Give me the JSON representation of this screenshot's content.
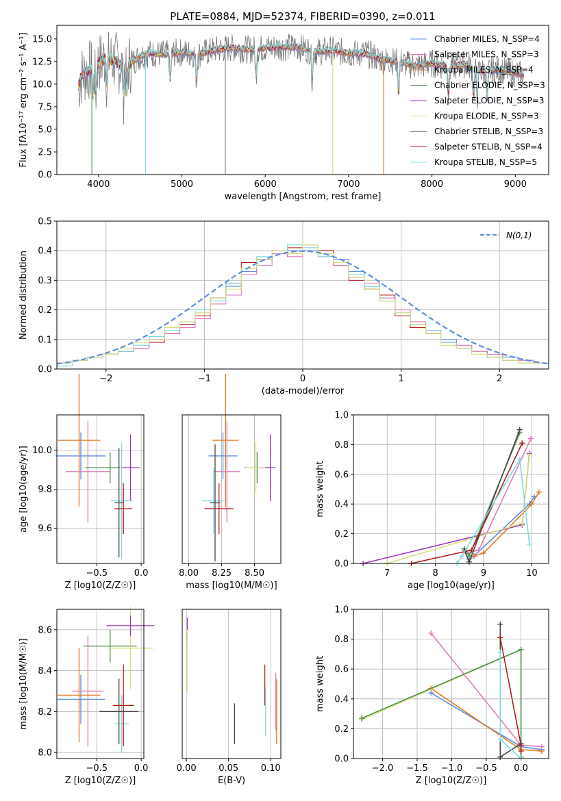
{
  "chart_data": [
    {
      "type": "line",
      "title": "PLATE=0884, MJD=52374, FIBERID=0390, z=0.011",
      "xlabel": "wavelength [Angstrom, rest frame]",
      "ylabel": "Flux [fλ10⁻¹⁷ erg cm⁻² s⁻¹ A⁻¹]",
      "xlim": [
        3500,
        9400
      ],
      "ylim": [
        0,
        16.5
      ],
      "xticks": [
        4000,
        5000,
        6000,
        7000,
        8000,
        9000
      ],
      "yticks": [
        0.0,
        2.5,
        5.0,
        7.5,
        10.0,
        12.5,
        15.0
      ],
      "grid": false,
      "legend_position": "top-right",
      "legend": [
        {
          "label": "Chabrier MILES, N_SSP=4",
          "color": "#5b8ee0"
        },
        {
          "label": "Salpeter MILES, N_SSP=3",
          "color": "#e07ab9"
        },
        {
          "label": "Kroupa MILES, N_SSP=4",
          "color": "#e07a1f"
        },
        {
          "label": "Chabrier ELODIE, N_SSP=3",
          "color": "#4f8f4f"
        },
        {
          "label": "Salpeter ELODIE, N_SSP=3",
          "color": "#9b35b8"
        },
        {
          "label": "Kroupa ELODIE, N_SSP=3",
          "color": "#d7e07a"
        },
        {
          "label": "Chabrier STELIB, N_SSP=3",
          "color": "#444444"
        },
        {
          "label": "Salpeter STELIB, N_SSP=4",
          "color": "#b01c1c"
        },
        {
          "label": "Kroupa STELIB, N_SSP=5",
          "color": "#7fd9e0"
        }
      ],
      "spectrum_envelope": {
        "x": [
          3750,
          3800,
          3900,
          4000,
          4100,
          4200,
          4300,
          4400,
          4500,
          4600,
          4800,
          5000,
          5200,
          5400,
          5600,
          5800,
          6000,
          6200,
          6400,
          6600,
          6800,
          7000,
          7200,
          7400,
          7600,
          7800,
          8000,
          8200,
          8400,
          8600,
          8800,
          9000,
          9100
        ],
        "y": [
          9.5,
          11.0,
          11.6,
          12.3,
          13.0,
          12.5,
          12.0,
          12.4,
          13.1,
          13.4,
          13.3,
          13.5,
          13.3,
          13.8,
          14.0,
          13.8,
          14.0,
          14.1,
          14.1,
          13.6,
          13.7,
          13.4,
          13.4,
          12.7,
          12.5,
          12.0,
          12.3,
          11.9,
          12.2,
          11.4,
          11.6,
          11.2,
          11.0
        ]
      }
    },
    {
      "type": "line",
      "xlabel": "(data-model)/error",
      "ylabel": "Normed distribution",
      "xlim": [
        -2.5,
        2.5
      ],
      "ylim": [
        0,
        0.5
      ],
      "xticks": [
        -2,
        -1,
        0,
        1,
        2
      ],
      "yticks": [
        0.0,
        0.1,
        0.2,
        0.3,
        0.4,
        0.5
      ],
      "grid": true,
      "legend_position": "top-right",
      "legend": [
        {
          "label": "N(0,1)",
          "color": "#5b8ee0"
        }
      ],
      "series": [
        {
          "color": "#5b8ee0",
          "step_values": [
            0.02,
            0.03,
            0.04,
            0.05,
            0.06,
            0.08,
            0.1,
            0.12,
            0.15,
            0.19,
            0.24,
            0.28,
            0.33,
            0.37,
            0.39,
            0.4,
            0.4,
            0.39,
            0.37,
            0.33,
            0.28,
            0.24,
            0.19,
            0.15,
            0.12,
            0.1,
            0.08,
            0.06,
            0.05,
            0.04,
            0.03,
            0.02
          ]
        },
        {
          "color": "#b01c1c",
          "step_values": [
            0.02,
            0.03,
            0.04,
            0.05,
            0.06,
            0.07,
            0.09,
            0.12,
            0.15,
            0.18,
            0.24,
            0.29,
            0.36,
            0.37,
            0.4,
            0.41,
            0.42,
            0.4,
            0.35,
            0.3,
            0.27,
            0.25,
            0.18,
            0.14,
            0.12,
            0.09,
            0.07,
            0.06,
            0.04,
            0.03,
            0.03,
            0.02
          ]
        },
        {
          "color": "#e07ab9",
          "step_values": [
            0.02,
            0.03,
            0.04,
            0.05,
            0.06,
            0.07,
            0.1,
            0.12,
            0.14,
            0.17,
            0.22,
            0.25,
            0.32,
            0.35,
            0.39,
            0.38,
            0.41,
            0.38,
            0.35,
            0.31,
            0.29,
            0.24,
            0.2,
            0.16,
            0.13,
            0.09,
            0.08,
            0.06,
            0.05,
            0.03,
            0.03,
            0.02
          ]
        },
        {
          "color": "#7fd9e0",
          "step_values": [
            0.01,
            0.03,
            0.04,
            0.05,
            0.06,
            0.08,
            0.11,
            0.13,
            0.16,
            0.2,
            0.23,
            0.29,
            0.34,
            0.38,
            0.4,
            0.42,
            0.41,
            0.38,
            0.36,
            0.32,
            0.28,
            0.23,
            0.19,
            0.15,
            0.13,
            0.09,
            0.07,
            0.05,
            0.04,
            0.03,
            0.02,
            0.02
          ]
        },
        {
          "color": "#d7e07a",
          "step_values": [
            0.02,
            0.03,
            0.04,
            0.05,
            0.07,
            0.09,
            0.1,
            0.14,
            0.16,
            0.19,
            0.24,
            0.27,
            0.34,
            0.37,
            0.4,
            0.39,
            0.42,
            0.39,
            0.36,
            0.31,
            0.27,
            0.23,
            0.19,
            0.15,
            0.12,
            0.08,
            0.07,
            0.05,
            0.04,
            0.03,
            0.02,
            0.02
          ]
        }
      ],
      "normal_curve": {
        "mean": 0,
        "sigma": 1
      }
    },
    {
      "type": "scatter",
      "xlabel": "Z [log10(Z/Z☉)]",
      "ylabel": "age  [log10(age/yr)]",
      "xlim": [
        -0.95,
        0.03
      ],
      "ylim": [
        9.42,
        10.18
      ],
      "xticks": [
        -0.5,
        0.0
      ],
      "yticks": [
        9.6,
        9.8,
        10.0
      ],
      "grid": true,
      "points": [
        {
          "color": "#5b8ee0",
          "x": -0.68,
          "y": 9.97,
          "xerr": 0.28,
          "yerr": 0.12
        },
        {
          "color": "#e07a1f",
          "x": -0.7,
          "y": 10.05,
          "xerr": 0.24,
          "yerr": 0.34
        },
        {
          "color": "#e07ab9",
          "x": -0.6,
          "y": 9.89,
          "xerr": 0.25,
          "yerr": 0.26
        },
        {
          "color": "#4f8f4f",
          "x": -0.35,
          "y": 9.91,
          "xerr": 0.28,
          "yerr": 0.08
        },
        {
          "color": "#d7e07a",
          "x": -0.12,
          "y": 9.91,
          "xerr": 0.12,
          "yerr": 0.13
        },
        {
          "color": "#9b35b8",
          "x": -0.12,
          "y": 9.91,
          "xerr": 0.1,
          "yerr": 0.17
        },
        {
          "color": "#7fd9e0",
          "x": -0.22,
          "y": 9.74,
          "xerr": 0.12,
          "yerr": 0.3
        },
        {
          "color": "#444444",
          "x": -0.25,
          "y": 9.73,
          "xerr": 0.05,
          "yerr": 0.28
        },
        {
          "color": "#b01c1c",
          "x": -0.2,
          "y": 9.7,
          "xerr": 0.1,
          "yerr": 0.13
        }
      ]
    },
    {
      "type": "scatter",
      "xlabel": "mass [log10(M/M☉)]",
      "xlim": [
        7.95,
        8.7
      ],
      "ylim": [
        9.42,
        10.18
      ],
      "xticks": [
        8.0,
        8.25,
        8.5
      ],
      "grid": true,
      "points": [
        {
          "color": "#5b8ee0",
          "x": 8.26,
          "y": 9.97,
          "xerr": 0.11,
          "yerr": 0.12
        },
        {
          "color": "#e07a1f",
          "x": 8.28,
          "y": 10.05,
          "xerr": 0.1,
          "yerr": 0.34
        },
        {
          "color": "#e07ab9",
          "x": 8.29,
          "y": 9.89,
          "xerr": 0.1,
          "yerr": 0.26
        },
        {
          "color": "#4f8f4f",
          "x": 8.52,
          "y": 9.91,
          "xerr": 0.1,
          "yerr": 0.08
        },
        {
          "color": "#d7e07a",
          "x": 8.51,
          "y": 9.91,
          "xerr": 0.08,
          "yerr": 0.13
        },
        {
          "color": "#9b35b8",
          "x": 8.62,
          "y": 9.91,
          "xerr": 0.04,
          "yerr": 0.17
        },
        {
          "color": "#7fd9e0",
          "x": 8.19,
          "y": 9.74,
          "xerr": 0.09,
          "yerr": 0.17
        },
        {
          "color": "#444444",
          "x": 8.2,
          "y": 9.73,
          "xerr": 0.04,
          "yerr": 0.3
        },
        {
          "color": "#b01c1c",
          "x": 8.23,
          "y": 9.7,
          "xerr": 0.11,
          "yerr": 0.13
        }
      ]
    },
    {
      "type": "line",
      "xlabel": "age  [log10(age/yr)]",
      "ylabel": "mass weight",
      "xlim": [
        6.3,
        10.35
      ],
      "ylim": [
        0,
        1.0
      ],
      "xticks": [
        7,
        8,
        9,
        10
      ],
      "yticks": [
        0.0,
        0.2,
        0.4,
        0.6,
        0.8,
        1.0
      ],
      "grid": true,
      "series": [
        {
          "color": "#5b8ee0",
          "x": [
            8.7,
            8.8,
            9.95,
            10.05
          ],
          "y": [
            0.03,
            0.05,
            0.4,
            0.45
          ]
        },
        {
          "color": "#e07a1f",
          "x": [
            8.8,
            9.0,
            10.0,
            10.15
          ],
          "y": [
            0.05,
            0.07,
            0.4,
            0.48
          ]
        },
        {
          "color": "#e07ab9",
          "x": [
            8.65,
            8.9,
            9.98
          ],
          "y": [
            0.07,
            0.09,
            0.84
          ]
        },
        {
          "color": "#9b35b8",
          "x": [
            6.5,
            9.8,
            9.95
          ],
          "y": [
            0.0,
            0.26,
            0.74
          ]
        },
        {
          "color": "#d7e07a",
          "x": [
            7.0,
            9.8,
            9.95
          ],
          "y": [
            0.0,
            0.27,
            0.73
          ]
        },
        {
          "color": "#4f8f4f",
          "x": [
            8.6,
            8.7,
            9.75
          ],
          "y": [
            0.1,
            0.05,
            0.88
          ]
        },
        {
          "color": "#444444",
          "x": [
            8.6,
            8.7,
            9.75
          ],
          "y": [
            0.09,
            0.01,
            0.9
          ]
        },
        {
          "color": "#b01c1c",
          "x": [
            7.5,
            8.75,
            9.8
          ],
          "y": [
            0.0,
            0.09,
            0.81
          ]
        },
        {
          "color": "#7fd9e0",
          "x": [
            8.45,
            8.55,
            9.75,
            9.95
          ],
          "y": [
            0.0,
            0.05,
            0.7,
            0.13
          ]
        }
      ]
    },
    {
      "type": "scatter",
      "xlabel": "Z [log10(Z/Z☉)]",
      "ylabel": "mass [log10(M/M☉)]",
      "xlim": [
        -0.95,
        0.03
      ],
      "ylim": [
        7.97,
        8.7
      ],
      "xticks": [
        -0.5,
        0.0
      ],
      "yticks": [
        8.0,
        8.2,
        8.4,
        8.6
      ],
      "grid": true,
      "points": [
        {
          "color": "#5b8ee0",
          "x": -0.68,
          "y": 8.26,
          "xerr": 0.27,
          "yerr": 0.12
        },
        {
          "color": "#e07a1f",
          "x": -0.7,
          "y": 8.28,
          "xerr": 0.24,
          "yerr": 0.23
        },
        {
          "color": "#e07ab9",
          "x": -0.6,
          "y": 8.3,
          "xerr": 0.18,
          "yerr": 0.27
        },
        {
          "color": "#4f8f4f",
          "x": -0.35,
          "y": 8.52,
          "xerr": 0.3,
          "yerr": 0.08
        },
        {
          "color": "#d7e07a",
          "x": -0.12,
          "y": 8.51,
          "xerr": 0.26,
          "yerr": 0.2
        },
        {
          "color": "#9b35b8",
          "x": -0.12,
          "y": 8.62,
          "xerr": 0.27,
          "yerr": 0.05
        },
        {
          "color": "#7fd9e0",
          "x": -0.22,
          "y": 8.14,
          "xerr": 0.08,
          "yerr": 0.14
        },
        {
          "color": "#444444",
          "x": -0.25,
          "y": 8.2,
          "xerr": 0.22,
          "yerr": 0.16
        },
        {
          "color": "#b01c1c",
          "x": -0.2,
          "y": 8.23,
          "xerr": 0.12,
          "yerr": 0.2
        }
      ]
    },
    {
      "type": "scatter",
      "xlabel": "E(B-V)",
      "xlim": [
        -0.005,
        0.112
      ],
      "ylim": [
        7.97,
        8.7
      ],
      "xticks": [
        0.0,
        0.05,
        0.1
      ],
      "grid": true,
      "points": [
        {
          "color": "#9b35b8",
          "x": 0.001,
          "y": 8.6,
          "xerr": 0.0,
          "yerr": 0.06
        },
        {
          "color": "#d7e07a",
          "x": 0.001,
          "y": 8.45,
          "xerr": 0.0,
          "yerr": 0.15
        },
        {
          "color": "#444444",
          "x": 0.057,
          "y": 8.14,
          "xerr": 0.0,
          "yerr": 0.1
        },
        {
          "color": "#b01c1c",
          "x": 0.093,
          "y": 8.33,
          "xerr": 0.0,
          "yerr": 0.1
        },
        {
          "color": "#7fd9e0",
          "x": 0.094,
          "y": 8.2,
          "xerr": 0.0,
          "yerr": 0.12
        },
        {
          "color": "#e07ab9",
          "x": 0.106,
          "y": 8.25,
          "xerr": 0.0,
          "yerr": 0.14
        },
        {
          "color": "#e07a1f",
          "x": 0.107,
          "y": 8.2,
          "xerr": 0.0,
          "yerr": 0.16
        }
      ]
    },
    {
      "type": "line",
      "xlabel": "Z [log10(Z/Z☉)]",
      "ylabel": "mass weight",
      "xlim": [
        -2.42,
        0.4
      ],
      "ylim": [
        0,
        1.0
      ],
      "xticks": [
        -2.0,
        -1.5,
        -1.0,
        -0.5,
        0.0
      ],
      "yticks": [
        0.0,
        0.2,
        0.4,
        0.6,
        0.8,
        1.0
      ],
      "grid": true,
      "series": [
        {
          "color": "#5b8ee0",
          "x": [
            -1.3,
            0.0,
            0.3
          ],
          "y": [
            0.44,
            0.08,
            0.06
          ]
        },
        {
          "color": "#e07a1f",
          "x": [
            -1.3,
            0.0,
            0.3
          ],
          "y": [
            0.47,
            0.06,
            0.05
          ]
        },
        {
          "color": "#e07ab9",
          "x": [
            -1.3,
            0.0,
            0.3
          ],
          "y": [
            0.84,
            0.09,
            0.08
          ]
        },
        {
          "color": "#d7e07a",
          "x": [
            -2.3,
            0.0,
            0.0
          ],
          "y": [
            0.26,
            0.73,
            0.01
          ]
        },
        {
          "color": "#4f8f4f",
          "x": [
            -2.3,
            0.0,
            0.0
          ],
          "y": [
            0.27,
            0.73,
            0.01
          ]
        },
        {
          "color": "#444444",
          "x": [
            -0.3,
            -0.3,
            0.0
          ],
          "y": [
            0.9,
            0.01,
            0.1
          ]
        },
        {
          "color": "#b01c1c",
          "x": [
            -0.3,
            0.0,
            0.0
          ],
          "y": [
            0.81,
            0.09,
            0.05
          ]
        },
        {
          "color": "#7fd9e0",
          "x": [
            -0.3,
            -0.3,
            0.0
          ],
          "y": [
            0.71,
            0.13,
            0.0
          ]
        }
      ]
    }
  ]
}
